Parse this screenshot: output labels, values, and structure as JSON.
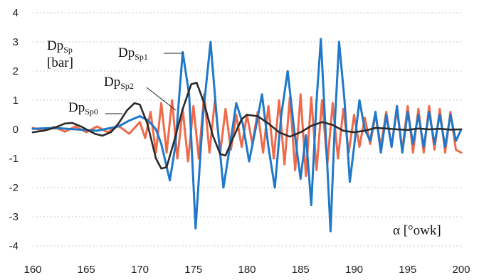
{
  "chart_data": {
    "type": "line",
    "xlabel": "α [°owk]",
    "ylabel": {
      "main": "Dp",
      "sub": "Sp",
      "unit": "[bar]"
    },
    "xlim": [
      160,
      200
    ],
    "ylim": [
      -4,
      4
    ],
    "x_ticks": [
      "160",
      "165",
      "170",
      "175",
      "180",
      "185",
      "190",
      "195",
      "200"
    ],
    "y_ticks": [
      "4",
      "3",
      "2",
      "1",
      "0",
      "-1",
      "-2",
      "-3",
      "-4"
    ],
    "grid": {
      "horizontal": true,
      "vertical": false
    },
    "series": [
      {
        "name": "DpSp0",
        "label": {
          "main": "Dp",
          "sub": "Sp0"
        },
        "color": "#2a2a2a",
        "points": [
          [
            160,
            -0.1
          ],
          [
            161,
            -0.05
          ],
          [
            162,
            0.05
          ],
          [
            163,
            0.2
          ],
          [
            163.7,
            0.22
          ],
          [
            164.5,
            0.1
          ],
          [
            165,
            0.0
          ],
          [
            165.8,
            -0.15
          ],
          [
            166.5,
            -0.22
          ],
          [
            167.3,
            -0.1
          ],
          [
            168,
            0.2
          ],
          [
            168.8,
            0.65
          ],
          [
            169.5,
            0.9
          ],
          [
            170,
            0.85
          ],
          [
            170.7,
            0.2
          ],
          [
            171.5,
            -1.0
          ],
          [
            172,
            -1.35
          ],
          [
            172.5,
            -1.3
          ],
          [
            173.2,
            -0.4
          ],
          [
            174,
            0.7
          ],
          [
            174.8,
            1.55
          ],
          [
            175.3,
            1.6
          ],
          [
            176,
            0.9
          ],
          [
            176.8,
            -0.2
          ],
          [
            177.5,
            -0.85
          ],
          [
            178,
            -0.9
          ],
          [
            178.7,
            -0.3
          ],
          [
            179.5,
            0.35
          ],
          [
            180,
            0.5
          ],
          [
            181,
            0.45
          ],
          [
            182,
            0.2
          ],
          [
            183,
            -0.1
          ],
          [
            184,
            -0.25
          ],
          [
            185,
            -0.1
          ],
          [
            186,
            0.12
          ],
          [
            187,
            0.25
          ],
          [
            188,
            0.15
          ],
          [
            189,
            -0.05
          ],
          [
            190,
            -0.1
          ],
          [
            191,
            -0.05
          ],
          [
            192,
            0.05
          ],
          [
            193,
            0.03
          ],
          [
            194,
            0.0
          ],
          [
            195,
            -0.02
          ],
          [
            196,
            0.03
          ],
          [
            197,
            0.0
          ],
          [
            198,
            0.02
          ],
          [
            199,
            -0.01
          ],
          [
            200,
            0.0
          ]
        ]
      },
      {
        "name": "DpSp1",
        "label": {
          "main": "Dp",
          "sub": "Sp1"
        },
        "color": "#1f78c8",
        "points": [
          [
            160,
            0.02
          ],
          [
            162,
            0.05
          ],
          [
            164,
            0.0
          ],
          [
            166,
            -0.05
          ],
          [
            168,
            0.1
          ],
          [
            169,
            0.3
          ],
          [
            170,
            0.45
          ],
          [
            170.8,
            0.3
          ],
          [
            171.5,
            0.0
          ],
          [
            172,
            -0.5
          ],
          [
            172.8,
            -1.75
          ],
          [
            173.3,
            -0.6
          ],
          [
            174,
            2.65
          ],
          [
            174.6,
            1.2
          ],
          [
            175.2,
            -3.4
          ],
          [
            175.9,
            0.5
          ],
          [
            176.6,
            3.0
          ],
          [
            177.2,
            0.3
          ],
          [
            177.8,
            -2.0
          ],
          [
            178.4,
            -0.6
          ],
          [
            179,
            0.9
          ],
          [
            179.6,
            0.2
          ],
          [
            180.2,
            -1.1
          ],
          [
            180.8,
            0.0
          ],
          [
            181.4,
            1.2
          ],
          [
            182,
            -0.6
          ],
          [
            182.6,
            -2.0
          ],
          [
            183.2,
            0.5
          ],
          [
            183.8,
            2.0
          ],
          [
            184.4,
            0.0
          ],
          [
            185,
            -1.7
          ],
          [
            185.5,
            -0.2
          ],
          [
            186,
            -2.6
          ],
          [
            186.5,
            1.0
          ],
          [
            186.9,
            3.1
          ],
          [
            187.3,
            0.2
          ],
          [
            187.8,
            -3.5
          ],
          [
            188.2,
            0.2
          ],
          [
            188.6,
            3.0
          ],
          [
            189.1,
            1.0
          ],
          [
            189.6,
            -1.8
          ],
          [
            190,
            -0.6
          ],
          [
            190.5,
            1.0
          ],
          [
            191,
            0.0
          ],
          [
            191.5,
            -0.4
          ],
          [
            192,
            0.6
          ],
          [
            192.5,
            -0.8
          ],
          [
            193,
            0.5
          ],
          [
            193.5,
            -0.6
          ],
          [
            194,
            0.8
          ],
          [
            194.5,
            -0.8
          ],
          [
            195,
            0.6
          ],
          [
            195.5,
            -0.5
          ],
          [
            196,
            0.5
          ],
          [
            196.5,
            -0.6
          ],
          [
            197,
            0.6
          ],
          [
            197.5,
            -0.5
          ],
          [
            198,
            0.5
          ],
          [
            198.5,
            -0.6
          ],
          [
            199,
            0.5
          ],
          [
            199.5,
            -0.4
          ],
          [
            200,
            0.0
          ]
        ]
      },
      {
        "name": "DpSp2",
        "label": {
          "main": "Dp",
          "sub": "Sp2"
        },
        "color": "#ee6a4a",
        "points": [
          [
            160,
            0.05
          ],
          [
            161,
            -0.05
          ],
          [
            162,
            0.08
          ],
          [
            163,
            -0.08
          ],
          [
            164,
            0.1
          ],
          [
            165,
            -0.1
          ],
          [
            166,
            0.1
          ],
          [
            167,
            -0.1
          ],
          [
            168,
            0.12
          ],
          [
            169,
            -0.15
          ],
          [
            170,
            0.25
          ],
          [
            170.5,
            -0.3
          ],
          [
            171,
            0.6
          ],
          [
            171.5,
            -0.8
          ],
          [
            172,
            0.9
          ],
          [
            172.5,
            -0.8
          ],
          [
            173,
            1.0
          ],
          [
            173.5,
            -1.0
          ],
          [
            174,
            0.7
          ],
          [
            174.5,
            -1.1
          ],
          [
            175,
            0.8
          ],
          [
            175.5,
            -1.0
          ],
          [
            176,
            1.2
          ],
          [
            176.5,
            -0.8
          ],
          [
            177,
            1.0
          ],
          [
            177.5,
            -0.8
          ],
          [
            178,
            0.7
          ],
          [
            178.5,
            -0.7
          ],
          [
            179,
            0.5
          ],
          [
            179.5,
            -0.6
          ],
          [
            180,
            0.5
          ],
          [
            180.5,
            -0.5
          ],
          [
            181,
            0.6
          ],
          [
            181.5,
            -0.8
          ],
          [
            182,
            0.8
          ],
          [
            182.5,
            -1.0
          ],
          [
            183,
            1.0
          ],
          [
            183.5,
            -1.2
          ],
          [
            184,
            1.1
          ],
          [
            184.5,
            -1.4
          ],
          [
            185,
            1.2
          ],
          [
            185.5,
            -1.6
          ],
          [
            186,
            1.1
          ],
          [
            186.5,
            -1.4
          ],
          [
            187,
            1.0
          ],
          [
            187.5,
            -1.2
          ],
          [
            188,
            0.9
          ],
          [
            188.5,
            -1.0
          ],
          [
            189,
            0.7
          ],
          [
            189.5,
            -0.8
          ],
          [
            190,
            0.5
          ],
          [
            190.5,
            -0.6
          ],
          [
            191,
            0.4
          ],
          [
            191.5,
            -0.5
          ],
          [
            192,
            0.5
          ],
          [
            192.5,
            -0.6
          ],
          [
            193,
            0.6
          ],
          [
            193.5,
            -0.6
          ],
          [
            194,
            0.7
          ],
          [
            194.5,
            -0.7
          ],
          [
            195,
            0.8
          ],
          [
            195.5,
            -0.8
          ],
          [
            196,
            0.7
          ],
          [
            196.5,
            -0.8
          ],
          [
            197,
            0.8
          ],
          [
            197.5,
            -0.7
          ],
          [
            198,
            0.7
          ],
          [
            198.5,
            -0.8
          ],
          [
            199,
            0.6
          ],
          [
            199.5,
            -0.7
          ],
          [
            200,
            -0.8
          ]
        ]
      }
    ]
  }
}
